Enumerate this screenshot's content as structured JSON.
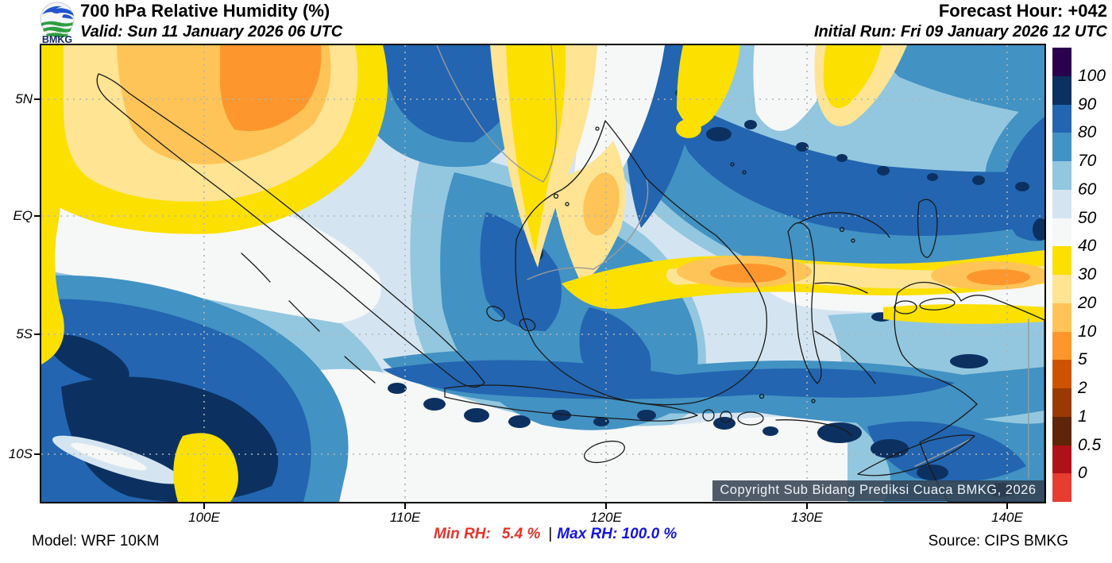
{
  "header": {
    "logo": "BMKG",
    "title": "700 hPa Relative Humidity (%)",
    "valid": "Valid: Sun 11 January 2026 06 UTC",
    "forecast_hour": "Forecast Hour: +042",
    "initial_run": "Initial Run: Fri 09 January 2026 12 UTC"
  },
  "map": {
    "lat_labels": [
      "5N",
      "EQ",
      "5S",
      "10S"
    ],
    "lon_labels": [
      "100E",
      "110E",
      "120E",
      "130E",
      "140E"
    ],
    "copyright": "Copyright Sub Bidang Prediksi Cuaca BMKG, 2026"
  },
  "colorbar": {
    "tick_labels": [
      "100",
      "90",
      "80",
      "70",
      "60",
      "50",
      "40",
      "30",
      "20",
      "10",
      "5",
      "2",
      "1",
      "0.5",
      "0"
    ],
    "segment_colors_top_to_bottom": [
      "#2b004f",
      "#0c3161",
      "#2365b0",
      "#4292c3",
      "#93c7df",
      "#d4e5f1",
      "#f6f7f7",
      "#fce000",
      "#fee493",
      "#ffc457",
      "#fd972d",
      "#cd5301",
      "#993a05",
      "#5e2509",
      "#ae1218",
      "#e73c30"
    ]
  },
  "footer": {
    "model": "Model: WRF 10KM",
    "min_label": "Min RH:",
    "min_value": "5.4 %",
    "divider": "|",
    "max_label": "Max RH:",
    "max_value": "100.0 %",
    "source": "Source: CIPS BMKG",
    "min_color": "#e8332b",
    "max_color": "#1515dd"
  }
}
